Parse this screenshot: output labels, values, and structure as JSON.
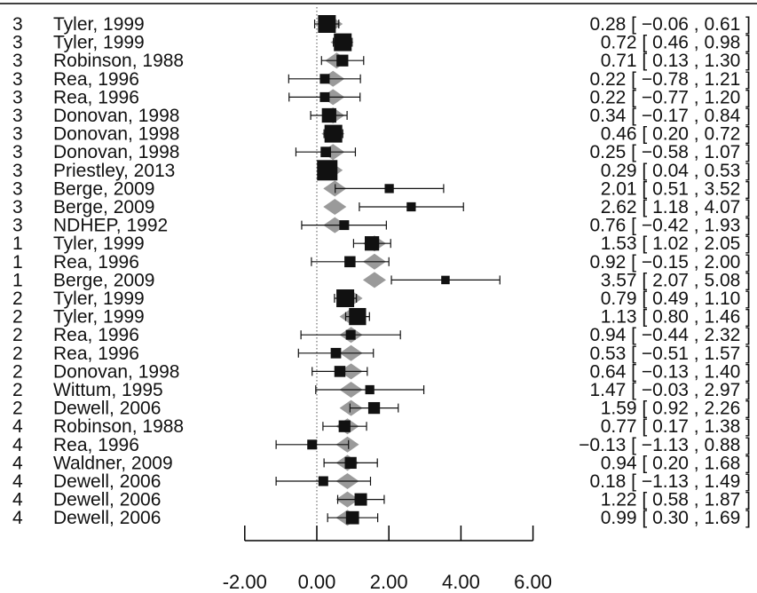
{
  "chart_data": {
    "type": "forest",
    "xlim": [
      -2.0,
      6.0
    ],
    "xticks": [
      "-2.00",
      "0.00",
      "2.00",
      "4.00",
      "6.00"
    ],
    "xtick_values": [
      -2,
      0,
      2,
      4,
      6
    ],
    "reference_line": 0,
    "grid": false,
    "colors": {
      "point": "#111111",
      "summary_diamond": "#9a9a9a",
      "axis": "#000000",
      "reference_line": "#555555"
    },
    "rows": [
      {
        "group": "3",
        "study": "Tyler, 1999",
        "estimate": 0.28,
        "lower": -0.06,
        "upper": 0.61,
        "text": "0.28 [ −0.06 , 0.61 ]",
        "weight": 1.0,
        "summary": 0.4
      },
      {
        "group": "3",
        "study": "Tyler, 1999",
        "estimate": 0.72,
        "lower": 0.46,
        "upper": 0.98,
        "text": "0.72 [ 0.46 , 0.98 ]",
        "weight": 1.0,
        "summary": 0.7
      },
      {
        "group": "3",
        "study": "Robinson, 1988",
        "estimate": 0.71,
        "lower": 0.13,
        "upper": 1.3,
        "text": "0.71 [ 0.13 , 1.30 ]",
        "weight": 0.55,
        "summary": 0.55
      },
      {
        "group": "3",
        "study": "Rea, 1996",
        "estimate": 0.22,
        "lower": -0.78,
        "upper": 1.21,
        "text": "0.22 [ −0.78 , 1.21 ]",
        "weight": 0.4,
        "summary": 0.45
      },
      {
        "group": "3",
        "study": "Rea, 1996",
        "estimate": 0.22,
        "lower": -0.77,
        "upper": 1.2,
        "text": "0.22 [ −0.77 , 1.20 ]",
        "weight": 0.4,
        "summary": 0.45
      },
      {
        "group": "3",
        "study": "Donovan, 1998",
        "estimate": 0.34,
        "lower": -0.17,
        "upper": 0.84,
        "text": "0.34 [ −0.17 , 0.84 ]",
        "weight": 0.75,
        "summary": 0.45
      },
      {
        "group": "3",
        "study": "Donovan, 1998",
        "estimate": 0.46,
        "lower": 0.2,
        "upper": 0.72,
        "text": "0.46 [ 0.20 , 0.72 ]",
        "weight": 1.0,
        "summary": 0.45
      },
      {
        "group": "3",
        "study": "Donovan, 1998",
        "estimate": 0.25,
        "lower": -0.58,
        "upper": 1.07,
        "text": "0.25 [ −0.58 , 1.07 ]",
        "weight": 0.45,
        "summary": 0.45
      },
      {
        "group": "3",
        "study": "Priestley, 2013",
        "estimate": 0.29,
        "lower": 0.04,
        "upper": 0.53,
        "text": "0.29 [ 0.04 , 0.53 ]",
        "weight": 1.2,
        "summary": 0.4
      },
      {
        "group": "3",
        "study": "Berge, 2009",
        "estimate": 2.01,
        "lower": 0.51,
        "upper": 3.52,
        "text": "2.01 [ 0.51 , 3.52 ]",
        "weight": 0.35,
        "summary": 0.5
      },
      {
        "group": "3",
        "study": "Berge, 2009",
        "estimate": 2.62,
        "lower": 1.18,
        "upper": 4.07,
        "text": "2.62 [ 1.18 , 4.07 ]",
        "weight": 0.35,
        "summary": 0.5
      },
      {
        "group": "3",
        "study": "NDHEP, 1992",
        "estimate": 0.76,
        "lower": -0.42,
        "upper": 1.93,
        "text": "0.76 [ −0.42 , 1.93 ]",
        "weight": 0.4,
        "summary": 0.5
      },
      {
        "group": "1",
        "study": "Tyler, 1999",
        "estimate": 1.53,
        "lower": 1.02,
        "upper": 2.05,
        "text": "1.53 [ 1.02 , 2.05 ]",
        "weight": 0.75,
        "summary": 1.6
      },
      {
        "group": "1",
        "study": "Rea, 1996",
        "estimate": 0.92,
        "lower": -0.15,
        "upper": 2.0,
        "text": "0.92 [ −0.15 , 2.00 ]",
        "weight": 0.5,
        "summary": 1.6
      },
      {
        "group": "1",
        "study": "Berge, 2009",
        "estimate": 3.57,
        "lower": 2.07,
        "upper": 5.08,
        "text": "3.57 [ 2.07 , 5.08 ]",
        "weight": 0.3,
        "summary": 1.6
      },
      {
        "group": "2",
        "study": "Tyler, 1999",
        "estimate": 0.79,
        "lower": 0.49,
        "upper": 1.1,
        "text": "0.79 [ 0.49 , 1.10 ]",
        "weight": 1.0,
        "summary": 0.95
      },
      {
        "group": "2",
        "study": "Tyler, 1999",
        "estimate": 1.13,
        "lower": 0.8,
        "upper": 1.46,
        "text": "1.13 [ 0.80 , 1.46 ]",
        "weight": 0.95,
        "summary": 0.95
      },
      {
        "group": "2",
        "study": "Rea, 1996",
        "estimate": 0.94,
        "lower": -0.44,
        "upper": 2.32,
        "text": "0.94 [ −0.44 , 2.32 ]",
        "weight": 0.4,
        "summary": 0.95
      },
      {
        "group": "2",
        "study": "Rea, 1996",
        "estimate": 0.53,
        "lower": -0.51,
        "upper": 1.57,
        "text": "0.53 [ −0.51 , 1.57 ]",
        "weight": 0.45,
        "summary": 0.95
      },
      {
        "group": "2",
        "study": "Donovan, 1998",
        "estimate": 0.64,
        "lower": -0.13,
        "upper": 1.4,
        "text": "0.64 [ −0.13 , 1.40 ]",
        "weight": 0.5,
        "summary": 0.95
      },
      {
        "group": "2",
        "study": "Wittum, 1995",
        "estimate": 1.47,
        "lower": -0.03,
        "upper": 2.97,
        "text": "1.47 [ −0.03 , 2.97 ]",
        "weight": 0.35,
        "summary": 0.95
      },
      {
        "group": "2",
        "study": "Dewell, 2006",
        "estimate": 1.59,
        "lower": 0.92,
        "upper": 2.26,
        "text": "1.59 [ 0.92 , 2.26 ]",
        "weight": 0.55,
        "summary": 0.95
      },
      {
        "group": "4",
        "study": "Robinson, 1988",
        "estimate": 0.77,
        "lower": 0.17,
        "upper": 1.38,
        "text": "0.77 [ 0.17 , 1.38 ]",
        "weight": 0.55,
        "summary": 0.85
      },
      {
        "group": "4",
        "study": "Rea, 1996",
        "estimate": -0.13,
        "lower": -1.13,
        "upper": 0.88,
        "text": "−0.13 [ −1.13 , 0.88 ]",
        "weight": 0.4,
        "summary": 0.85
      },
      {
        "group": "4",
        "study": "Waldner, 2009",
        "estimate": 0.94,
        "lower": 0.2,
        "upper": 1.68,
        "text": "0.94 [ 0.20 , 1.68 ]",
        "weight": 0.55,
        "summary": 0.85
      },
      {
        "group": "4",
        "study": "Dewell, 2006",
        "estimate": 0.18,
        "lower": -1.13,
        "upper": 1.49,
        "text": "0.18 [ −1.13 , 1.49 ]",
        "weight": 0.4,
        "summary": 0.85
      },
      {
        "group": "4",
        "study": "Dewell, 2006",
        "estimate": 1.22,
        "lower": 0.58,
        "upper": 1.87,
        "text": "1.22 [ 0.58 , 1.87 ]",
        "weight": 0.6,
        "summary": 0.85
      },
      {
        "group": "4",
        "study": "Dewell, 2006",
        "estimate": 0.99,
        "lower": 0.3,
        "upper": 1.69,
        "text": "0.99 [ 0.30 , 1.69 ]",
        "weight": 0.65,
        "summary": 0.85
      }
    ]
  }
}
